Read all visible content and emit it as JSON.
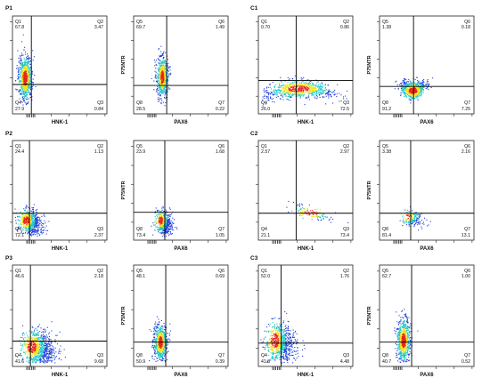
{
  "axes_text": {
    "x_hnk": "HNK-1",
    "x_pax6": "PAX6",
    "y_p75": "P75NTR"
  },
  "colors": {
    "low": "#1f3fd6",
    "mid": "#20c8c8",
    "high": "#f2e21a",
    "peak": "#e8231a",
    "gate": "#000000",
    "frame": "#222222"
  },
  "chart_data": [
    {
      "type": "scatter",
      "group": "P1",
      "kind": "HNK-1 vs unlabeled",
      "xlabel": "HNK-1",
      "ylabel": "",
      "quadrants": [
        {
          "name": "Q1",
          "value": "67.8"
        },
        {
          "name": "Q2",
          "value": "3.47"
        },
        {
          "name": "Q3",
          "value": "0.84"
        },
        {
          "name": "Q4",
          "value": "27.9"
        }
      ]
    },
    {
      "type": "scatter",
      "group": "P1",
      "kind": "PAX6 vs P75NTR",
      "xlabel": "PAX6",
      "ylabel": "P75NTR",
      "quadrants": [
        {
          "name": "Q5",
          "value": "69.7"
        },
        {
          "name": "Q6",
          "value": "1.49"
        },
        {
          "name": "Q7",
          "value": "0.22"
        },
        {
          "name": "Q8",
          "value": "28.5"
        }
      ]
    },
    {
      "type": "scatter",
      "group": "C1",
      "kind": "HNK-1 vs unlabeled",
      "xlabel": "HNK-1",
      "ylabel": "",
      "quadrants": [
        {
          "name": "Q1",
          "value": "0.70"
        },
        {
          "name": "Q2",
          "value": "0.86"
        },
        {
          "name": "Q3",
          "value": "72.5"
        },
        {
          "name": "Q4",
          "value": "26.0"
        }
      ]
    },
    {
      "type": "scatter",
      "group": "C1",
      "kind": "PAX6 vs P75NTR",
      "xlabel": "PAX6",
      "ylabel": "P75NTR",
      "quadrants": [
        {
          "name": "Q5",
          "value": "1.38"
        },
        {
          "name": "Q6",
          "value": "0.18"
        },
        {
          "name": "Q7",
          "value": "7.25"
        },
        {
          "name": "Q8",
          "value": "91.2"
        }
      ]
    },
    {
      "type": "scatter",
      "group": "P2",
      "kind": "HNK-1 vs unlabeled",
      "xlabel": "HNK-1",
      "ylabel": "",
      "quadrants": [
        {
          "name": "Q1",
          "value": "24.4"
        },
        {
          "name": "Q2",
          "value": "1.13"
        },
        {
          "name": "Q3",
          "value": "2.37"
        },
        {
          "name": "Q4",
          "value": "72.1"
        }
      ]
    },
    {
      "type": "scatter",
      "group": "P2",
      "kind": "PAX6 vs P75NTR",
      "xlabel": "PAX6",
      "ylabel": "P75NTR",
      "quadrants": [
        {
          "name": "Q5",
          "value": "23.9"
        },
        {
          "name": "Q6",
          "value": "1.68"
        },
        {
          "name": "Q7",
          "value": "1.05"
        },
        {
          "name": "Q8",
          "value": "73.4"
        }
      ]
    },
    {
      "type": "scatter",
      "group": "C2",
      "kind": "HNK-1 vs unlabeled",
      "xlabel": "HNK-1",
      "ylabel": "",
      "quadrants": [
        {
          "name": "Q1",
          "value": "2.57"
        },
        {
          "name": "Q2",
          "value": "2.97"
        },
        {
          "name": "Q3",
          "value": "73.4"
        },
        {
          "name": "Q4",
          "value": "21.1"
        }
      ]
    },
    {
      "type": "scatter",
      "group": "C2",
      "kind": "PAX6 vs P75NTR",
      "xlabel": "PAX6",
      "ylabel": "P75NTR",
      "quadrants": [
        {
          "name": "Q5",
          "value": "3.38"
        },
        {
          "name": "Q6",
          "value": "2.16"
        },
        {
          "name": "Q7",
          "value": "13.1"
        },
        {
          "name": "Q8",
          "value": "81.4"
        }
      ]
    },
    {
      "type": "scatter",
      "group": "P3",
      "kind": "HNK-1 vs unlabeled",
      "xlabel": "HNK-1",
      "ylabel": "",
      "quadrants": [
        {
          "name": "Q1",
          "value": "46.6"
        },
        {
          "name": "Q2",
          "value": "2.18"
        },
        {
          "name": "Q3",
          "value": "9.68"
        },
        {
          "name": "Q4",
          "value": "41.6"
        }
      ]
    },
    {
      "type": "scatter",
      "group": "P3",
      "kind": "PAX6 vs P75NTR",
      "xlabel": "PAX6",
      "ylabel": "P75NTR",
      "quadrants": [
        {
          "name": "Q5",
          "value": "48.1"
        },
        {
          "name": "Q6",
          "value": "0.69"
        },
        {
          "name": "Q7",
          "value": "0.39"
        },
        {
          "name": "Q8",
          "value": "50.9"
        }
      ]
    },
    {
      "type": "scatter",
      "group": "C3",
      "kind": "HNK-1 vs unlabeled",
      "xlabel": "HNK-1",
      "ylabel": "",
      "quadrants": [
        {
          "name": "Q1",
          "value": "52.0"
        },
        {
          "name": "Q2",
          "value": "1.76"
        },
        {
          "name": "Q3",
          "value": "4.48"
        },
        {
          "name": "Q4",
          "value": "41.8"
        }
      ]
    },
    {
      "type": "scatter",
      "group": "C3",
      "kind": "PAX6 vs P75NTR",
      "xlabel": "PAX6",
      "ylabel": "P75NTR",
      "quadrants": [
        {
          "name": "Q5",
          "value": "62.7"
        },
        {
          "name": "Q6",
          "value": "1.00"
        },
        {
          "name": "Q7",
          "value": "0.52"
        },
        {
          "name": "Q8",
          "value": "40.7"
        }
      ]
    }
  ]
}
